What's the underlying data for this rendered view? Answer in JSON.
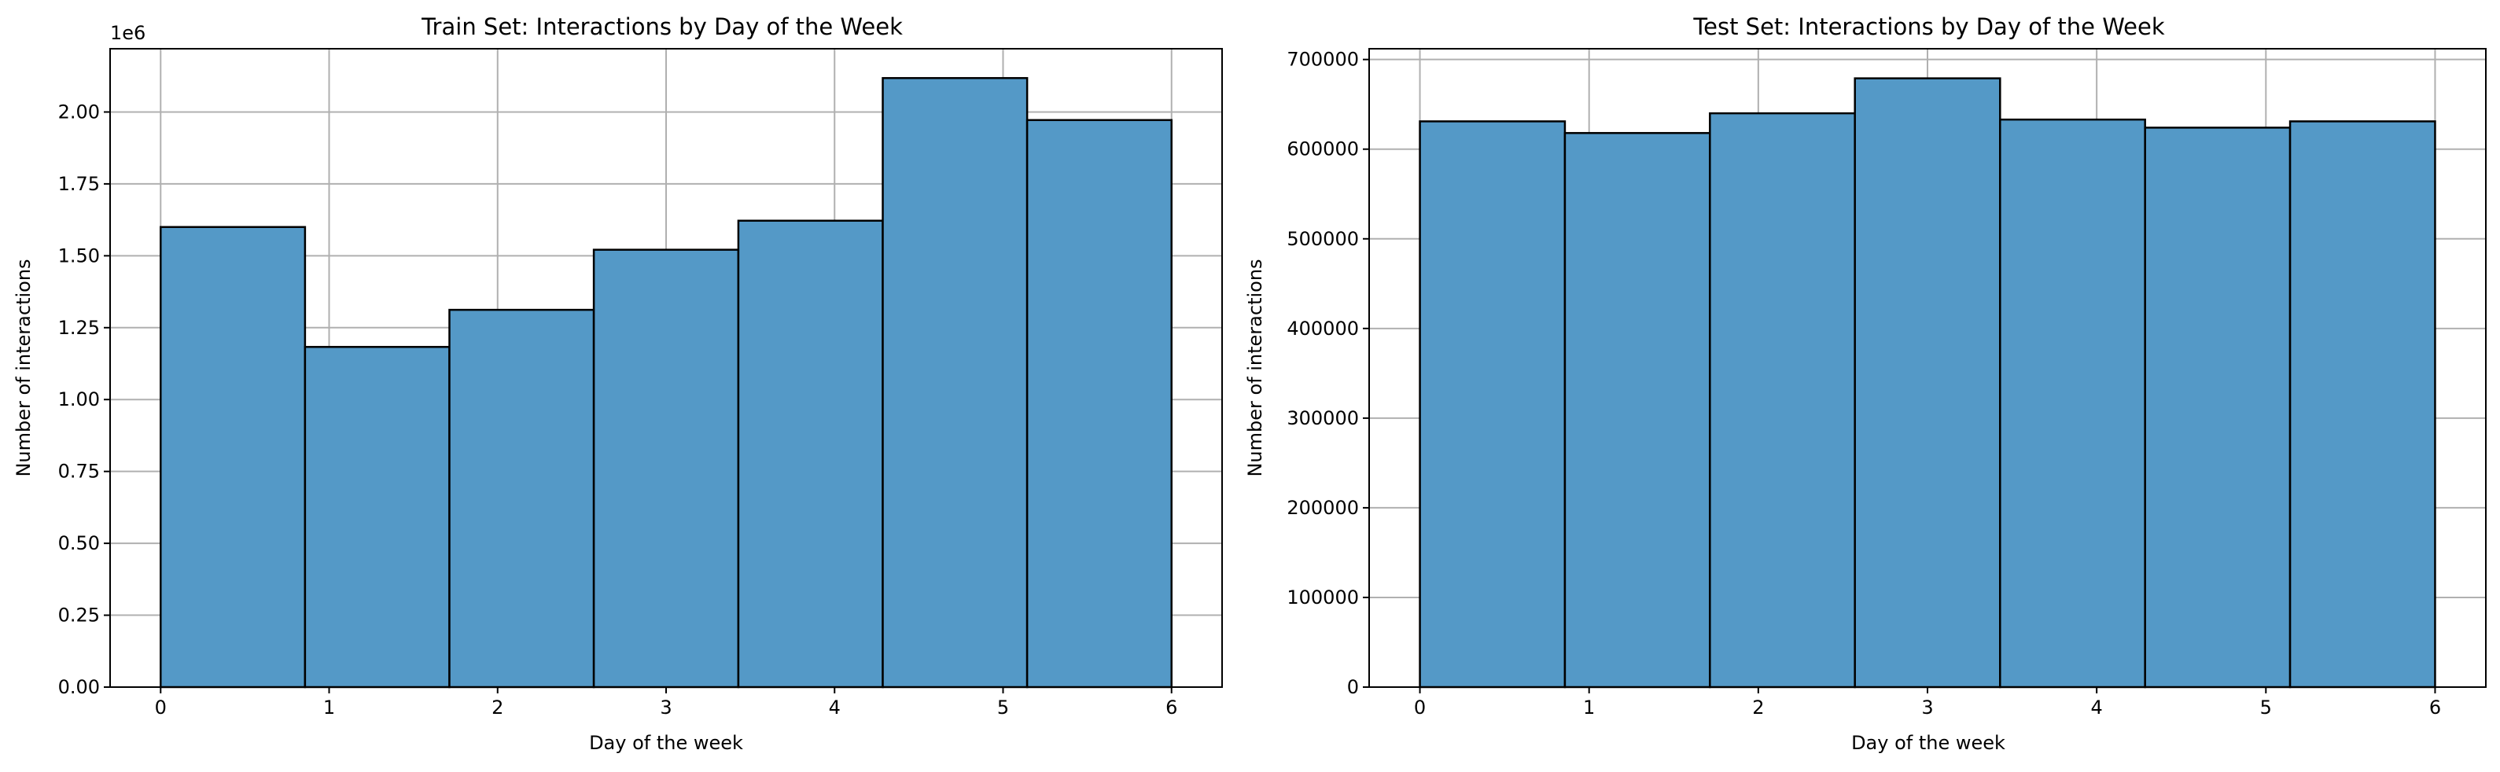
{
  "chart_data": [
    {
      "type": "bar",
      "title": "Train Set: Interactions by Day of the Week",
      "xlabel": "Day of the week",
      "ylabel": "Number of interactions",
      "offset_text": "1e6",
      "grid": true,
      "bins": 7,
      "bin_edges": [
        0,
        0.857,
        1.714,
        2.571,
        3.429,
        4.286,
        5.143,
        6
      ],
      "values": [
        1600000,
        1183000,
        1312000,
        1521000,
        1622000,
        2118000,
        1972000
      ],
      "xlim": [
        -0.3,
        6.3
      ],
      "ylim": [
        0,
        2220000
      ],
      "xticks": [
        0,
        1,
        2,
        3,
        4,
        5,
        6
      ],
      "xtick_labels": [
        "0",
        "1",
        "2",
        "3",
        "4",
        "5",
        "6"
      ],
      "yticks": [
        0,
        250000,
        500000,
        750000,
        1000000,
        1250000,
        1500000,
        1750000,
        2000000
      ],
      "ytick_labels": [
        "0.00",
        "0.25",
        "0.50",
        "0.75",
        "1.00",
        "1.25",
        "1.50",
        "1.75",
        "2.00"
      ],
      "bar_color": "#5499c7",
      "edge_color": "#000000",
      "grid_color": "#b0b0b0"
    },
    {
      "type": "bar",
      "title": "Test Set: Interactions by Day of the Week",
      "xlabel": "Day of the week",
      "ylabel": "Number of interactions",
      "offset_text": "",
      "grid": true,
      "bins": 7,
      "bin_edges": [
        0,
        0.857,
        1.714,
        2.571,
        3.429,
        4.286,
        5.143,
        6
      ],
      "values": [
        631000,
        618000,
        640000,
        679000,
        633000,
        624000,
        631000
      ],
      "xlim": [
        -0.3,
        6.3
      ],
      "ylim": [
        0,
        712000
      ],
      "xticks": [
        0,
        1,
        2,
        3,
        4,
        5,
        6
      ],
      "xtick_labels": [
        "0",
        "1",
        "2",
        "3",
        "4",
        "5",
        "6"
      ],
      "yticks": [
        0,
        100000,
        200000,
        300000,
        400000,
        500000,
        600000,
        700000
      ],
      "ytick_labels": [
        "0",
        "100000",
        "200000",
        "300000",
        "400000",
        "500000",
        "600000",
        "700000"
      ],
      "bar_color": "#5499c7",
      "edge_color": "#000000",
      "grid_color": "#b0b0b0"
    }
  ]
}
